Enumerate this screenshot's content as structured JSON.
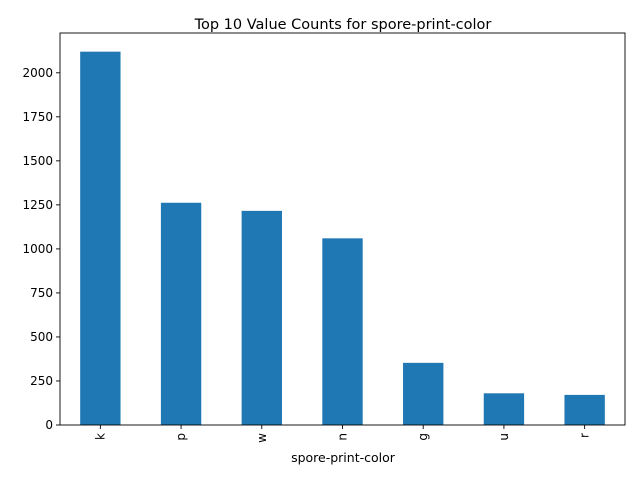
{
  "chart_data": {
    "type": "bar",
    "title": "Top 10 Value Counts for spore-print-color",
    "xlabel": "spore-print-color",
    "ylabel": "",
    "categories": [
      "k",
      "p",
      "w",
      "n",
      "g",
      "u",
      "r"
    ],
    "values": [
      2120,
      1262,
      1216,
      1060,
      353,
      180,
      171
    ],
    "ylim": [
      0,
      2226
    ],
    "yticks": [
      0,
      250,
      500,
      750,
      1000,
      1250,
      1500,
      1750,
      2000
    ],
    "grid": false,
    "legend": "none",
    "bar_color": "#1f77b4"
  }
}
